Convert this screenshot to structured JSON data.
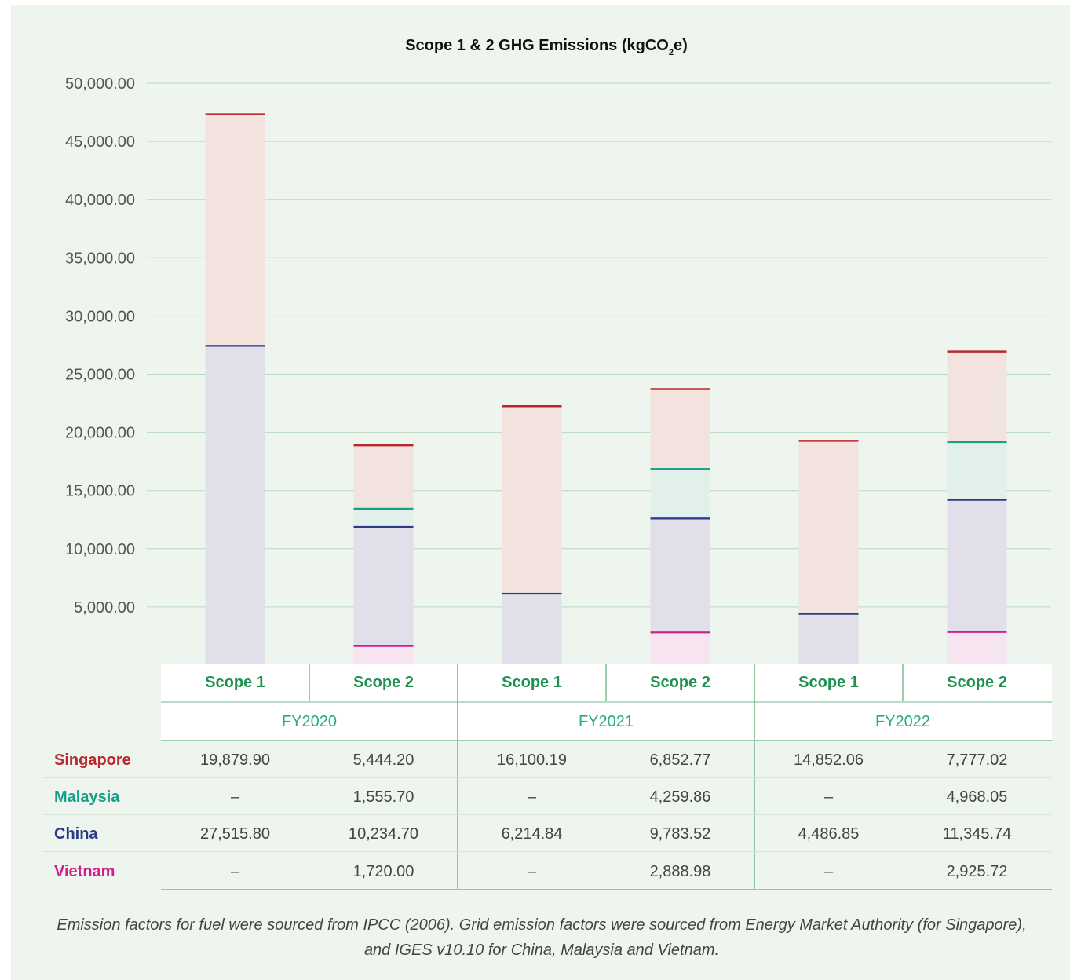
{
  "chart_data": {
    "type": "bar",
    "stacked": true,
    "title": "Scope 1 & 2 GHG Emissions (kgCO",
    "title_subscript": "2",
    "title_suffix": "e)",
    "ylim": [
      0,
      50000
    ],
    "yticks": [
      "5,000.00",
      "10,000.00",
      "15,000.00",
      "20,000.00",
      "25,000.00",
      "30,000.00",
      "35,000.00",
      "40,000.00",
      "45,000.00",
      "50,000.00"
    ],
    "ytick_values": [
      5000,
      10000,
      15000,
      20000,
      25000,
      30000,
      35000,
      40000,
      45000,
      50000
    ],
    "grid": true,
    "categories": [
      "FY2020 Scope 1",
      "FY2020 Scope 2",
      "FY2021 Scope 1",
      "FY2021 Scope 2",
      "FY2022 Scope 1",
      "FY2022 Scope 2"
    ],
    "stack_order": [
      "Vietnam",
      "China",
      "Malaysia",
      "Singapore"
    ],
    "series": [
      {
        "name": "Singapore",
        "values": [
          19879.9,
          5444.2,
          16100.19,
          6852.77,
          14852.06,
          7777.02
        ],
        "line_color": "#b8282e",
        "fill_color": "#f2e3de"
      },
      {
        "name": "Malaysia",
        "values": [
          0,
          1555.7,
          0,
          4259.86,
          0,
          4968.05
        ],
        "line_color": "#15a08a",
        "fill_color": "#e2f0ec"
      },
      {
        "name": "China",
        "values": [
          27515.8,
          10234.7,
          6214.84,
          9783.52,
          4486.85,
          11345.74
        ],
        "line_color": "#2a3a84",
        "fill_color": "#e1dfea"
      },
      {
        "name": "Vietnam",
        "values": [
          0,
          1720.0,
          0,
          2888.98,
          0,
          2925.72
        ],
        "line_color": "#d21e8c",
        "fill_color": "#f6e5f0"
      }
    ]
  },
  "table": {
    "scope_headers": [
      "Scope 1",
      "Scope 2",
      "Scope 1",
      "Scope 2",
      "Scope 1",
      "Scope 2"
    ],
    "years": [
      "FY2020",
      "FY2021",
      "FY2022"
    ],
    "rows": [
      {
        "label": "Singapore",
        "color": "#b8282e",
        "cells": [
          "19,879.90",
          "5,444.20",
          "16,100.19",
          "6,852.77",
          "14,852.06",
          "7,777.02"
        ]
      },
      {
        "label": "Malaysia",
        "color": "#15a08a",
        "cells": [
          "–",
          "1,555.70",
          "–",
          "4,259.86",
          "–",
          "4,968.05"
        ]
      },
      {
        "label": "China",
        "color": "#2a3a84",
        "cells": [
          "27,515.80",
          "10,234.70",
          "6,214.84",
          "9,783.52",
          "4,486.85",
          "11,345.74"
        ]
      },
      {
        "label": "Vietnam",
        "color": "#d21e8c",
        "cells": [
          "–",
          "1,720.00",
          "–",
          "2,888.98",
          "–",
          "2,925.72"
        ]
      }
    ]
  },
  "footnote": "Emission factors for fuel were sourced from IPCC (2006). Grid emission factors were sourced from Energy Market Authority (for Singapore), and IGES v10.10 for China, Malaysia and Vietnam."
}
